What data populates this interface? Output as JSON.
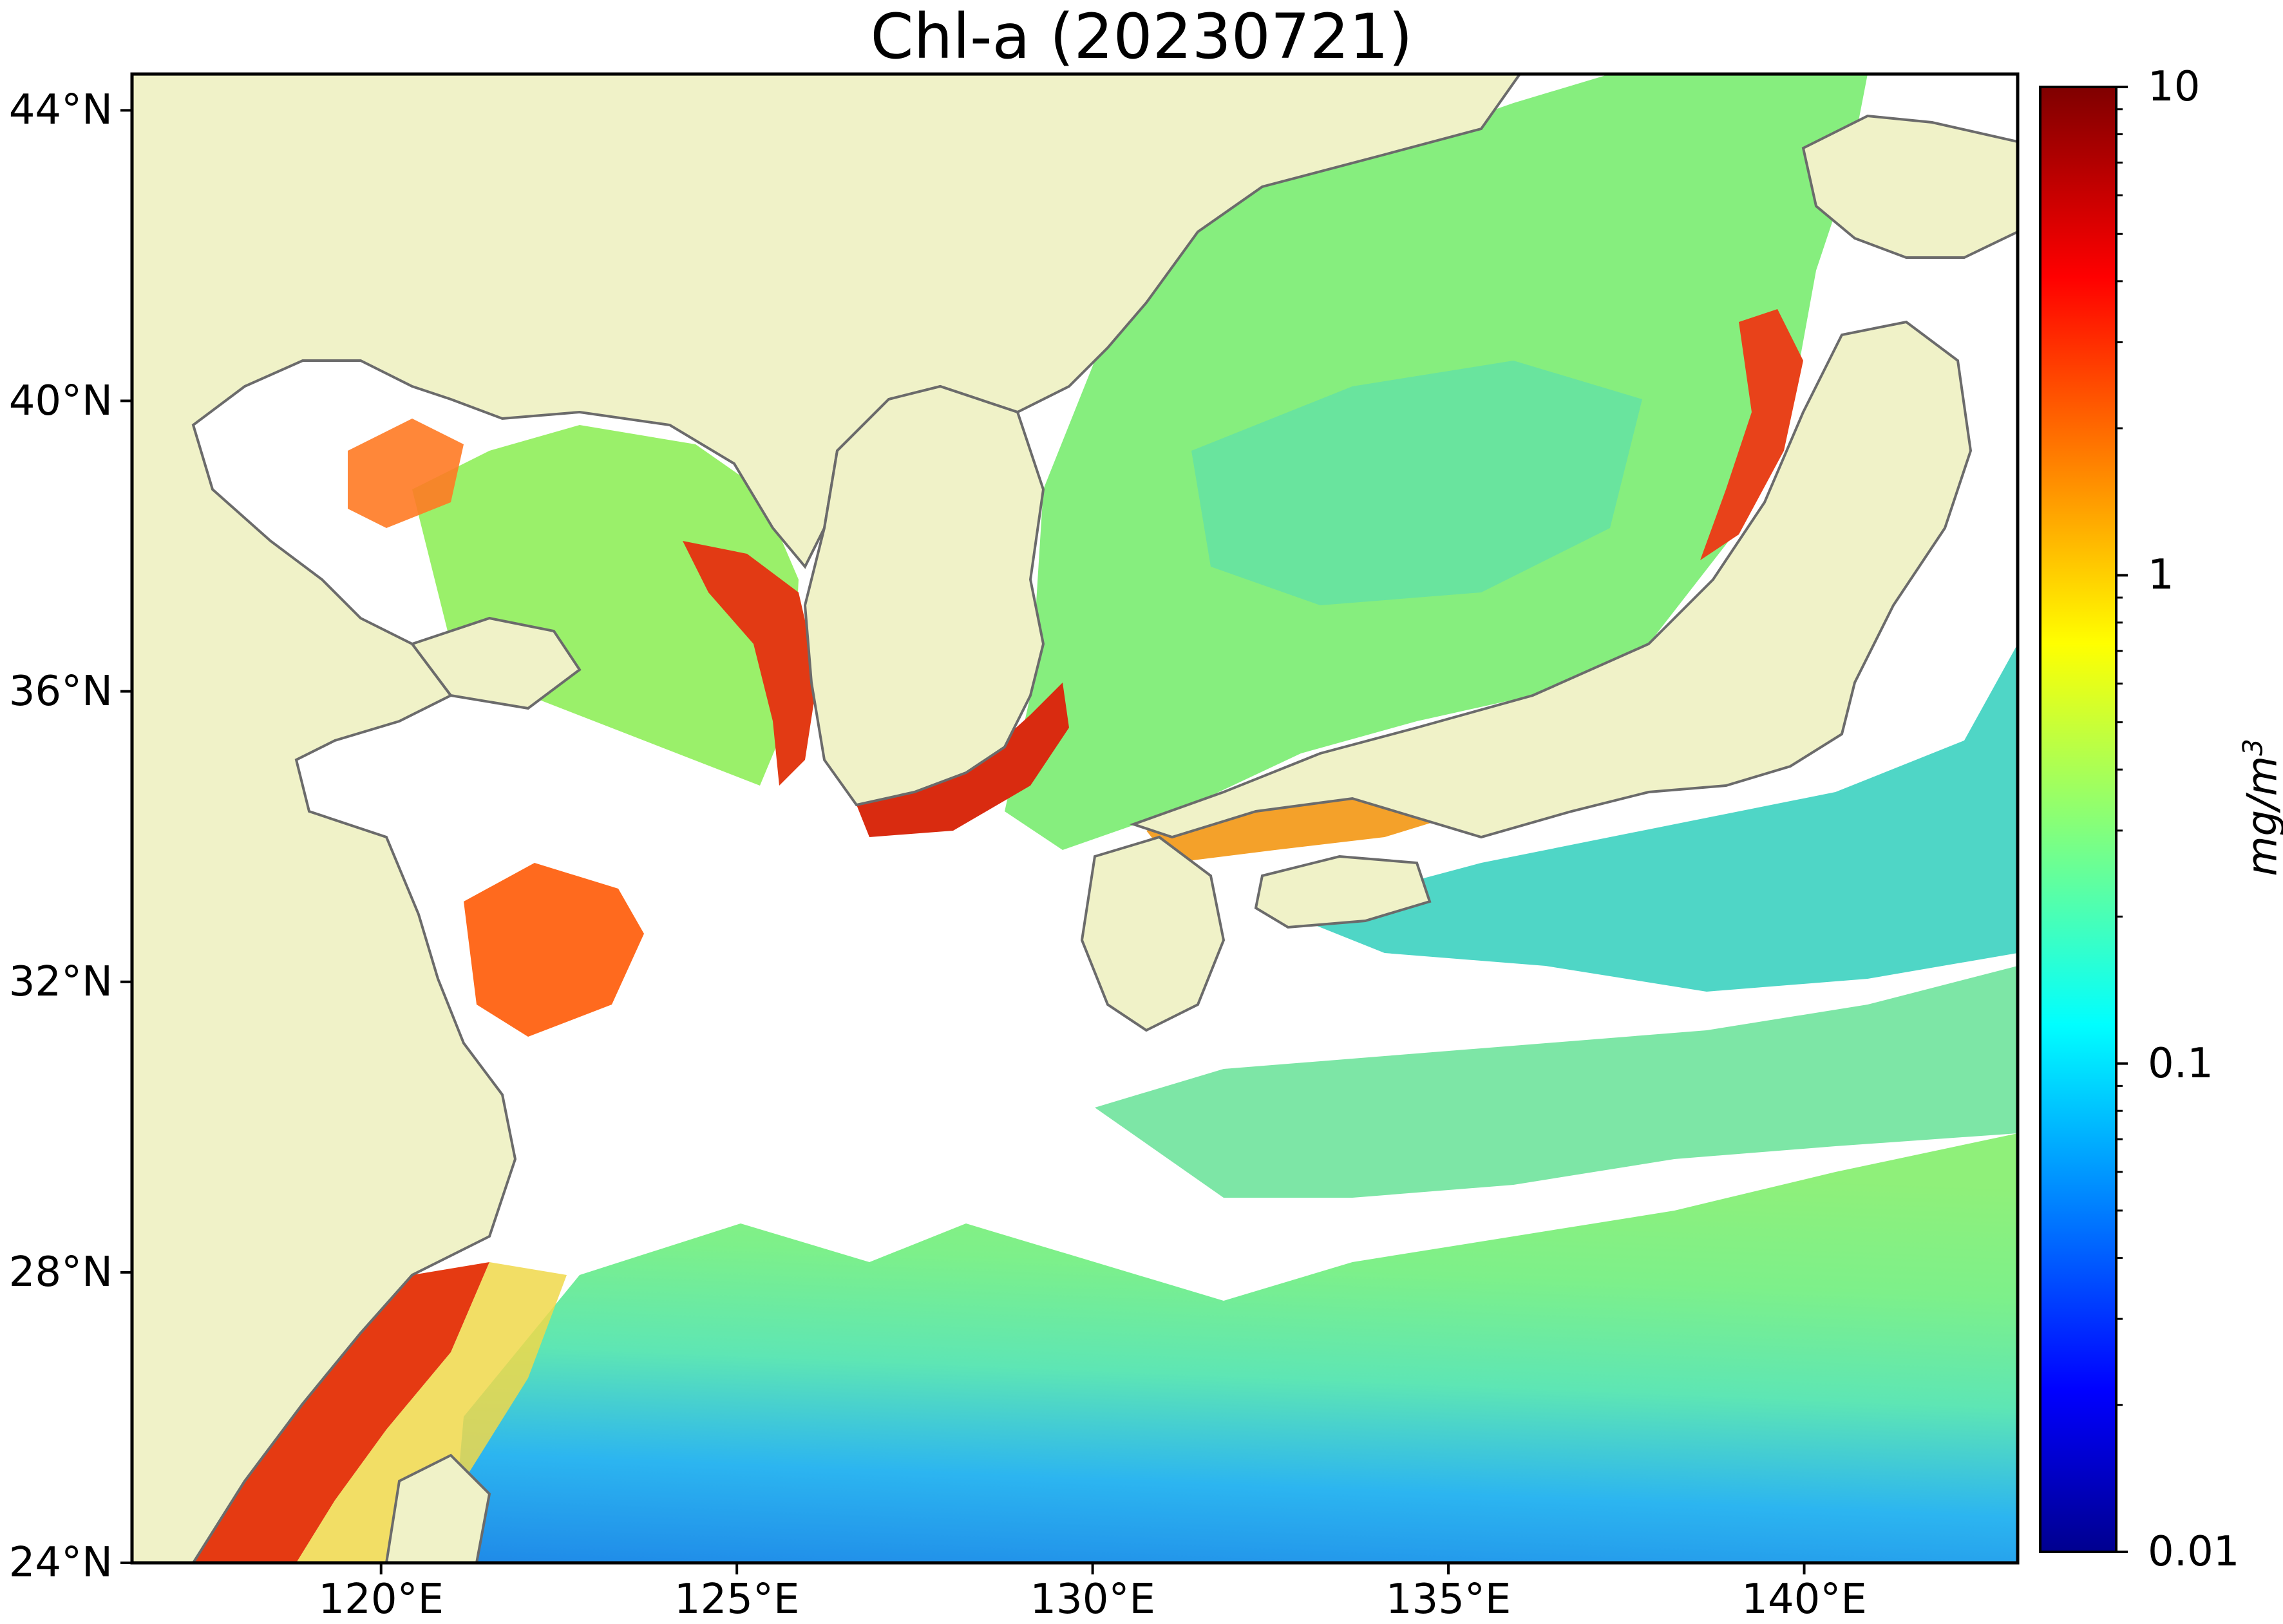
{
  "title": "Chl-a (20230721)",
  "map": {
    "variable": "Chl-a",
    "date": "20230721",
    "extent": {
      "lon_min": 116.5,
      "lon_max": 143.0,
      "lat_min": 24.0,
      "lat_max": 44.5
    },
    "land_color": "#f0f2c8",
    "no_data_color": "#ffffff",
    "coastline_color": "#6b6b6b",
    "lat_ticks": [
      {
        "value": 44,
        "label": "44°N"
      },
      {
        "value": 40,
        "label": "40°N"
      },
      {
        "value": 36,
        "label": "36°N"
      },
      {
        "value": 32,
        "label": "32°N"
      },
      {
        "value": 28,
        "label": "28°N"
      },
      {
        "value": 24,
        "label": "24°N"
      }
    ],
    "lon_ticks": [
      {
        "value": 120,
        "label": "120°E"
      },
      {
        "value": 125,
        "label": "125°E"
      },
      {
        "value": 130,
        "label": "130°E"
      },
      {
        "value": 135,
        "label": "135°E"
      },
      {
        "value": 140,
        "label": "140°E"
      }
    ]
  },
  "colorbar": {
    "scale": "log",
    "min": 0.01,
    "max": 10,
    "unit_label": "mg/m",
    "unit_exponent": "3",
    "colormap": "jet",
    "ticks": [
      {
        "value": 10,
        "label": "10"
      },
      {
        "value": 1,
        "label": "1"
      },
      {
        "value": 0.1,
        "label": "0.1"
      },
      {
        "value": 0.01,
        "label": "0.01"
      }
    ]
  }
}
